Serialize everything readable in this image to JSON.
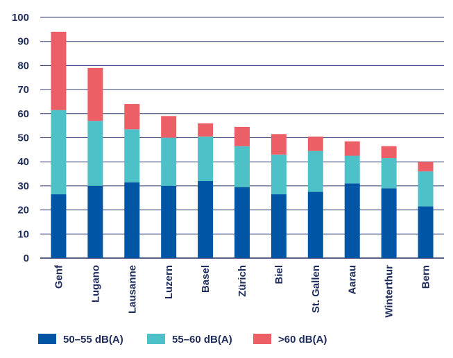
{
  "chart_data": {
    "type": "bar",
    "stacked": true,
    "categories": [
      "Genf",
      "Lugano",
      "Lausanne",
      "Luzern",
      "Basel",
      "Zürich",
      "Biel",
      "St. Gallen",
      "Aarau",
      "Winterthur",
      "Bern"
    ],
    "series": [
      {
        "name": "50–55 dB(A)",
        "color": "#0055a4",
        "values": [
          26.5,
          30,
          31.5,
          30,
          32,
          29.5,
          26.5,
          27.5,
          31,
          29,
          21.5
        ]
      },
      {
        "name": "55–60 dB(A)",
        "color": "#4dc0c8",
        "values": [
          35,
          27,
          22,
          20,
          18.5,
          17,
          16.5,
          17,
          11.5,
          12.5,
          14.5
        ]
      },
      {
        "name": ">60 dB(A)",
        "color": "#ec5f67",
        "values": [
          32.5,
          22,
          10.5,
          9,
          5.5,
          8,
          8.5,
          6,
          6,
          5,
          4
        ]
      }
    ],
    "ylim": [
      0,
      100
    ],
    "yticks": [
      0,
      10,
      20,
      30,
      40,
      50,
      60,
      70,
      80,
      90,
      100
    ],
    "grid": true,
    "legend_position": "bottom",
    "title": "",
    "xlabel": "",
    "ylabel": ""
  }
}
